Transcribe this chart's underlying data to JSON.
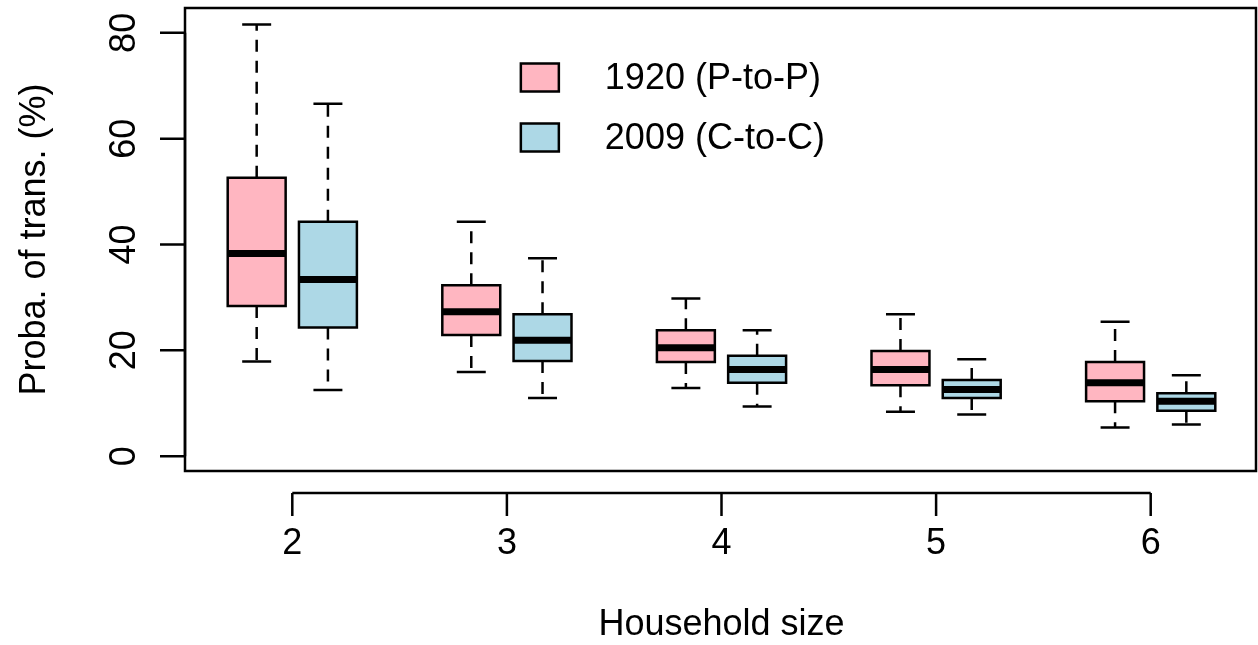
{
  "chart_data": {
    "type": "box",
    "xlabel": "Household size",
    "ylabel": "Proba. of trans. (%)",
    "categories": [
      "2",
      "3",
      "4",
      "5",
      "6"
    ],
    "ylim": [
      -2.8,
      84.7
    ],
    "yticks": [
      0,
      20,
      40,
      60,
      80
    ],
    "grid": false,
    "legend": "top",
    "series": [
      {
        "name": "1920 (P-to-P)",
        "color": "#ffb6c1",
        "boxes": [
          {
            "low": 17.9,
            "q1": 28.4,
            "median": 38.3,
            "q3": 52.6,
            "high": 81.6
          },
          {
            "low": 15.9,
            "q1": 22.9,
            "median": 27.3,
            "q3": 32.3,
            "high": 44.3
          },
          {
            "low": 12.9,
            "q1": 17.8,
            "median": 20.5,
            "q3": 23.8,
            "high": 29.8
          },
          {
            "low": 8.4,
            "q1": 13.4,
            "median": 16.4,
            "q3": 19.9,
            "high": 26.8
          },
          {
            "low": 5.4,
            "q1": 10.4,
            "median": 13.9,
            "q3": 17.8,
            "high": 25.4
          }
        ]
      },
      {
        "name": "2009 (C-to-C)",
        "color": "#add8e6",
        "boxes": [
          {
            "low": 12.5,
            "q1": 24.3,
            "median": 33.4,
            "q3": 44.3,
            "high": 66.6
          },
          {
            "low": 11.0,
            "q1": 18.0,
            "median": 21.9,
            "q3": 26.8,
            "high": 37.4
          },
          {
            "low": 9.4,
            "q1": 13.9,
            "median": 16.4,
            "q3": 19.0,
            "high": 23.8
          },
          {
            "low": 7.9,
            "q1": 11.0,
            "median": 12.6,
            "q3": 14.4,
            "high": 18.3
          },
          {
            "low": 6.0,
            "q1": 8.6,
            "median": 10.4,
            "q3": 11.9,
            "high": 15.3
          }
        ]
      }
    ]
  }
}
